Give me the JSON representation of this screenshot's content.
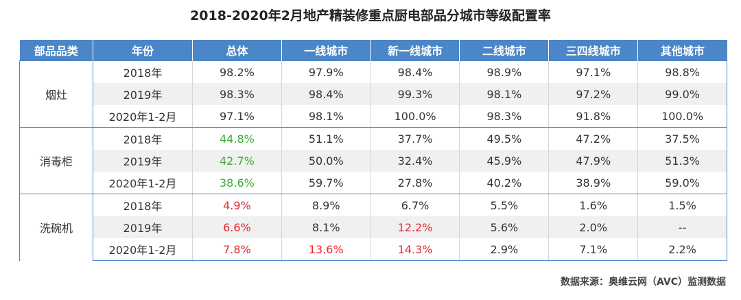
{
  "header": {
    "title": "2018-2020年2月地产精装修重点厨电部品分城市等级配置率"
  },
  "table": {
    "columns": [
      "部品品类",
      "年份",
      "总体",
      "一线城市",
      "新一线城市",
      "二线城市",
      "三四线城市",
      "其他城市"
    ],
    "groups": [
      {
        "name": "烟灶",
        "rows": [
          {
            "year": "2018年",
            "values": [
              "98.2%",
              "97.9%",
              "98.4%",
              "98.9%",
              "97.1%",
              "98.8%"
            ],
            "colors": [
              "#333333",
              "#333333",
              "#333333",
              "#333333",
              "#333333",
              "#333333"
            ]
          },
          {
            "year": "2019年",
            "values": [
              "98.3%",
              "98.4%",
              "99.3%",
              "98.1%",
              "97.2%",
              "99.0%"
            ],
            "colors": [
              "#333333",
              "#333333",
              "#333333",
              "#333333",
              "#333333",
              "#333333"
            ]
          },
          {
            "year": "2020年1-2月",
            "values": [
              "97.1%",
              "98.1%",
              "100.0%",
              "98.3%",
              "91.8%",
              "100.0%"
            ],
            "colors": [
              "#333333",
              "#333333",
              "#333333",
              "#333333",
              "#333333",
              "#333333"
            ]
          }
        ]
      },
      {
        "name": "消毒柜",
        "rows": [
          {
            "year": "2018年",
            "values": [
              "44.8%",
              "51.1%",
              "37.7%",
              "49.5%",
              "47.2%",
              "37.5%"
            ],
            "colors": [
              "#3aaa35",
              "#333333",
              "#333333",
              "#333333",
              "#333333",
              "#333333"
            ]
          },
          {
            "year": "2019年",
            "values": [
              "42.7%",
              "50.0%",
              "32.4%",
              "45.9%",
              "47.9%",
              "51.3%"
            ],
            "colors": [
              "#3aaa35",
              "#333333",
              "#333333",
              "#333333",
              "#333333",
              "#333333"
            ]
          },
          {
            "year": "2020年1-2月",
            "values": [
              "38.6%",
              "59.7%",
              "27.8%",
              "40.2%",
              "38.9%",
              "59.0%"
            ],
            "colors": [
              "#3aaa35",
              "#333333",
              "#333333",
              "#333333",
              "#333333",
              "#333333"
            ]
          }
        ]
      },
      {
        "name": "洗碗机",
        "rows": [
          {
            "year": "2018年",
            "values": [
              "4.9%",
              "8.9%",
              "6.7%",
              "5.5%",
              "1.6%",
              "1.5%"
            ],
            "colors": [
              "#e8262c",
              "#333333",
              "#333333",
              "#333333",
              "#333333",
              "#333333"
            ]
          },
          {
            "year": "2019年",
            "values": [
              "6.6%",
              "8.1%",
              "12.2%",
              "5.6%",
              "2.0%",
              "--"
            ],
            "colors": [
              "#e8262c",
              "#333333",
              "#e8262c",
              "#333333",
              "#333333",
              "#333333"
            ]
          },
          {
            "year": "2020年1-2月",
            "values": [
              "7.8%",
              "13.6%",
              "14.3%",
              "2.9%",
              "7.1%",
              "2.2%"
            ],
            "colors": [
              "#e8262c",
              "#e8262c",
              "#e8262c",
              "#333333",
              "#333333",
              "#333333"
            ]
          }
        ]
      }
    ]
  },
  "footer": {
    "source": "数据来源：奥维云网（AVC）监测数据"
  }
}
